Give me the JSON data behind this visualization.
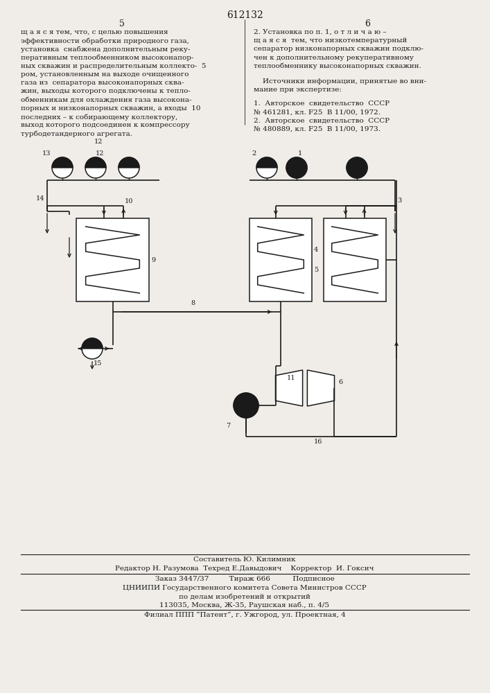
{
  "title": "612132",
  "page_numbers": [
    "5",
    "6"
  ],
  "left_text": [
    "щ а я с я тем, что, с целью повышения",
    "эффективности обработки природного газа,",
    "установка  снабжена дополнительным реку-",
    "перативным теплообменником высоконапор-",
    "ных скважин и распределительным коллекто-  5",
    "ром, установленным на выходе очищенного",
    "газа из  сепаратора высоконапорных сква-",
    "жин, выходы которого подключены к тепло-",
    "обменникам для охлаждения газа высокона-",
    "порных и низконапорных скважин, а входы  10",
    "последних – к собирающему коллектору,",
    "выход которого подсоединен к компрессору",
    "турбодетандерного агрегата."
  ],
  "right_text_top": [
    "2. Установка по п. 1, о т л и ч а ю –",
    "щ а я с я  тем, что низкотемпературный",
    "сепаратор низконапорных скважин подклю-",
    "чен к дополнительному рекуперативному",
    "теплообменнику высоконапорных скважин."
  ],
  "sources_text": [
    "    Источники информации, принятые во вни-",
    "мание при экспертизе:"
  ],
  "ref1": "1.  Авторское  свидетельство  СССР",
  "ref1b": "№ 461281, кл. F25  В 11/00, 1972.",
  "ref2": "2.  Авторское  свидетельство  СССР",
  "ref2b": "№ 480889, кл. F25  В 11/00, 1973.",
  "footer_composer": "Составитель Ю. Килимник",
  "footer_editor": "Редактор Н. Разумова  Техред Е.Давыдович    Корректор  И. Гоксич",
  "footer_order": "Заказ 3447/37         Тираж 666          Подписное",
  "footer_cniip": "ЦНИИПИ Государственного комитета Совета Министров СССР",
  "footer_affairs": "по делам изобретений и открытий",
  "footer_addr": "113035, Москва, Ж-35, Раушская наб., п. 4/5",
  "footer_patent": "Филиал ППП “Патент”, г. Ужгород, ул. Проектная, 4",
  "bg_color": "#f0ede8",
  "text_color": "#1a1a1a",
  "line_color": "#1a1a1a"
}
